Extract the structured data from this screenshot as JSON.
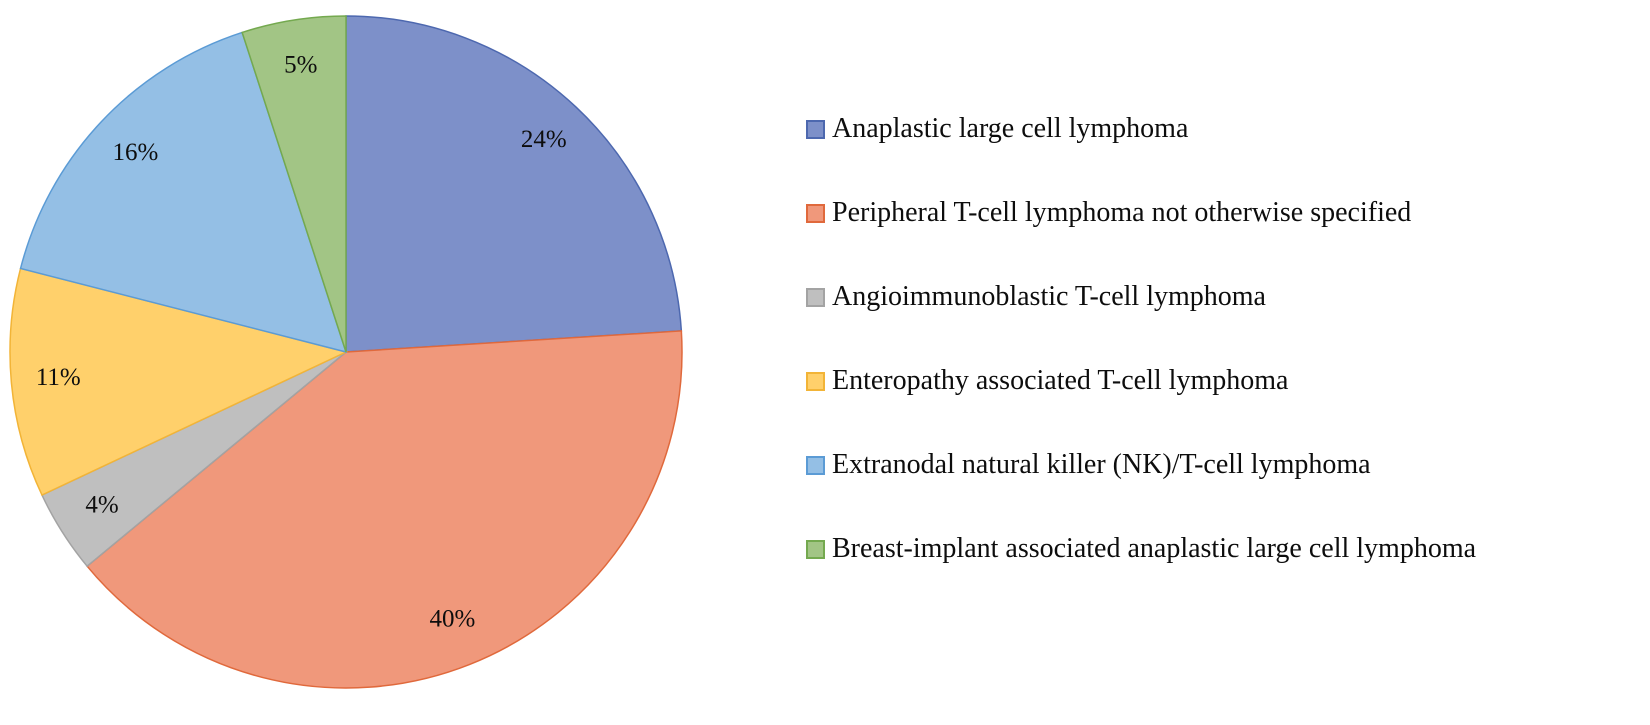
{
  "chart_data": {
    "type": "pie",
    "title": "",
    "legend_position": "right",
    "start_angle_deg": 0,
    "direction": "clockwise",
    "categories": [
      "Anaplastic large cell lymphoma",
      "Peripheral T-cell lymphoma not otherwise specified",
      "Angioimmunoblastic T-cell lymphoma",
      "Enteropathy associated T-cell lymphoma",
      "Extranodal natural killer (NK)/T-cell lymphoma",
      "Breast-implant associated anaplastic large cell lymphoma"
    ],
    "values": [
      24,
      40,
      4,
      11,
      16,
      5
    ],
    "data_labels": [
      "24%",
      "40%",
      "4%",
      "11%",
      "16%",
      "5%"
    ],
    "colors": [
      {
        "fill": "#7d90c9",
        "stroke": "#4d68af"
      },
      {
        "fill": "#f0987b",
        "stroke": "#e0693c"
      },
      {
        "fill": "#bfbfbf",
        "stroke": "#a3a3a3"
      },
      {
        "fill": "#ffd06b",
        "stroke": "#f2b437"
      },
      {
        "fill": "#94bfe5",
        "stroke": "#5b9bd5"
      },
      {
        "fill": "#a2c585",
        "stroke": "#74a94f"
      }
    ],
    "label_color": "#0d0d0d"
  }
}
